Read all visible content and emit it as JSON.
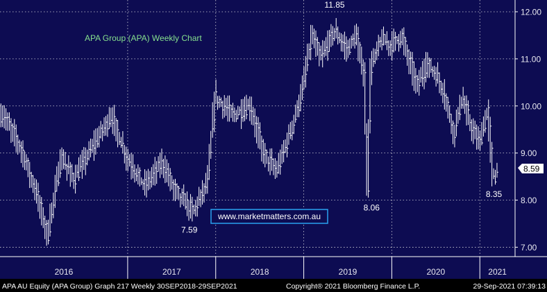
{
  "chart_data": {
    "type": "bar",
    "title": "APA Group (APA) Weekly Chart",
    "watermark": "www.marketmatters.com.au",
    "x_labels": [
      "2016",
      "2017",
      "2018",
      "2019",
      "2020",
      "2021"
    ],
    "y_ticks": [
      "7.00",
      "8.00",
      "9.00",
      "10.00",
      "11.00",
      "12.00"
    ],
    "ylim": [
      6.8,
      12.25
    ],
    "last_value": "8.59",
    "annotations": [
      {
        "label": "11.85",
        "value": 11.85,
        "year": 2019.35
      },
      {
        "label": "7.59",
        "value": 7.59,
        "year": 2017.7
      },
      {
        "label": "8.06",
        "value": 8.06,
        "year": 2019.77
      },
      {
        "label": "8.35",
        "value": 8.35,
        "year": 2021.16
      }
    ],
    "path_points": [
      [
        2015.6,
        9.8
      ],
      [
        2015.8,
        9.1
      ],
      [
        2015.98,
        8.1
      ],
      [
        2016.1,
        7.25
      ],
      [
        2016.25,
        8.9
      ],
      [
        2016.4,
        8.45
      ],
      [
        2016.6,
        9.1
      ],
      [
        2016.82,
        9.8
      ],
      [
        2017.0,
        8.9
      ],
      [
        2017.2,
        8.3
      ],
      [
        2017.4,
        8.8
      ],
      [
        2017.55,
        8.2
      ],
      [
        2017.75,
        7.75
      ],
      [
        2017.92,
        8.4
      ],
      [
        2018.0,
        10.2
      ],
      [
        2018.2,
        9.8
      ],
      [
        2018.4,
        10.0
      ],
      [
        2018.55,
        9.0
      ],
      [
        2018.7,
        8.6
      ],
      [
        2018.9,
        9.7
      ],
      [
        2019.0,
        10.4
      ],
      [
        2019.1,
        11.5
      ],
      [
        2019.2,
        11.0
      ],
      [
        2019.35,
        11.6
      ],
      [
        2019.5,
        11.2
      ],
      [
        2019.6,
        11.5
      ],
      [
        2019.7,
        10.6
      ],
      [
        2019.73,
        8.1
      ],
      [
        2019.77,
        10.8
      ],
      [
        2019.88,
        11.4
      ],
      [
        2020.0,
        11.3
      ],
      [
        2020.12,
        11.5
      ],
      [
        2020.2,
        11.0
      ],
      [
        2020.3,
        10.4
      ],
      [
        2020.4,
        10.9
      ],
      [
        2020.5,
        10.7
      ],
      [
        2020.6,
        10.3
      ],
      [
        2020.72,
        9.4
      ],
      [
        2020.8,
        10.2
      ],
      [
        2020.9,
        9.6
      ],
      [
        2021.0,
        9.2
      ],
      [
        2021.1,
        9.9
      ],
      [
        2021.16,
        8.45
      ],
      [
        2021.2,
        8.59
      ]
    ],
    "footer_left": "APA AU Equity (APA Group) Graph 217  Weekly 30SEP2018-29SEP2021",
    "footer_center": "Copyright® 2021 Bloomberg Finance L.P.",
    "footer_right": "29-Sep-2021 07:39:13",
    "colors": {
      "background": "#0d0c52",
      "grid": "#d0d0d8",
      "bars": "#ffffff",
      "title": "#86e08e",
      "watermark_border": "#2aa2f0",
      "watermark_bg": "#0d0c52"
    }
  }
}
